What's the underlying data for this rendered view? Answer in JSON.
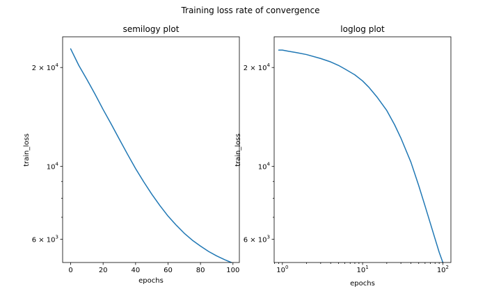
{
  "figure": {
    "suptitle": "Training loss rate of convergence"
  },
  "chart_data": [
    {
      "type": "line",
      "title": "semilogy plot",
      "xlabel": "epochs",
      "ylabel": "train_loss",
      "xscale": "linear",
      "yscale": "log",
      "xlim": [
        -4.95,
        103.95
      ],
      "ylim": [
        5100,
        24800
      ],
      "xticks": [
        0,
        20,
        40,
        60,
        80,
        100
      ],
      "xtick_labels": [
        "0",
        "20",
        "40",
        "60",
        "80",
        "100"
      ],
      "yticks": [
        6000,
        10000,
        20000
      ],
      "ytick_labels": [
        {
          "mantissa": "6 × 10",
          "exp": "3"
        },
        {
          "mantissa": "10",
          "exp": "4"
        },
        {
          "mantissa": "2 × 10",
          "exp": "4"
        }
      ],
      "y_minor_ticks": [
        7000,
        8000,
        9000
      ],
      "grid": false,
      "series": [
        {
          "color": "#1f77b4",
          "x": [
            0,
            5,
            10,
            15,
            20,
            25,
            30,
            35,
            40,
            45,
            50,
            55,
            60,
            65,
            70,
            75,
            80,
            85,
            90,
            95,
            99
          ],
          "y": [
            22800,
            20300,
            18400,
            16600,
            14900,
            13450,
            12100,
            10900,
            9850,
            8980,
            8230,
            7600,
            7060,
            6630,
            6260,
            5960,
            5720,
            5510,
            5340,
            5200,
            5100
          ]
        }
      ]
    },
    {
      "type": "line",
      "title": "loglog plot",
      "xlabel": "epochs",
      "ylabel": "train_loss",
      "xscale": "log",
      "yscale": "log",
      "xlim": [
        0.79,
        126
      ],
      "ylim": [
        5100,
        24800
      ],
      "xticks": [
        1,
        10,
        100
      ],
      "xtick_labels": [
        {
          "mantissa": "10",
          "exp": "0"
        },
        {
          "mantissa": "10",
          "exp": "1"
        },
        {
          "mantissa": "10",
          "exp": "2"
        }
      ],
      "yticks": [
        6000,
        10000,
        20000
      ],
      "ytick_labels": [
        {
          "mantissa": "6 × 10",
          "exp": "3"
        },
        {
          "mantissa": "10",
          "exp": "4"
        },
        {
          "mantissa": "2 × 10",
          "exp": "4"
        }
      ],
      "y_minor_ticks": [
        7000,
        8000,
        9000
      ],
      "grid": false,
      "series": [
        {
          "color": "#1f77b4",
          "x": [
            0.9,
            1,
            1.2,
            1.5,
            2,
            3,
            4,
            5,
            6,
            8,
            10,
            12,
            15,
            20,
            25,
            30,
            40,
            50,
            60,
            70,
            80,
            90,
            100
          ],
          "y": [
            22600,
            22600,
            22400,
            22200,
            21900,
            21300,
            20800,
            20300,
            19800,
            19000,
            18200,
            17400,
            16300,
            14800,
            13400,
            12200,
            10300,
            8750,
            7580,
            6700,
            6020,
            5480,
            5100
          ]
        }
      ]
    }
  ]
}
